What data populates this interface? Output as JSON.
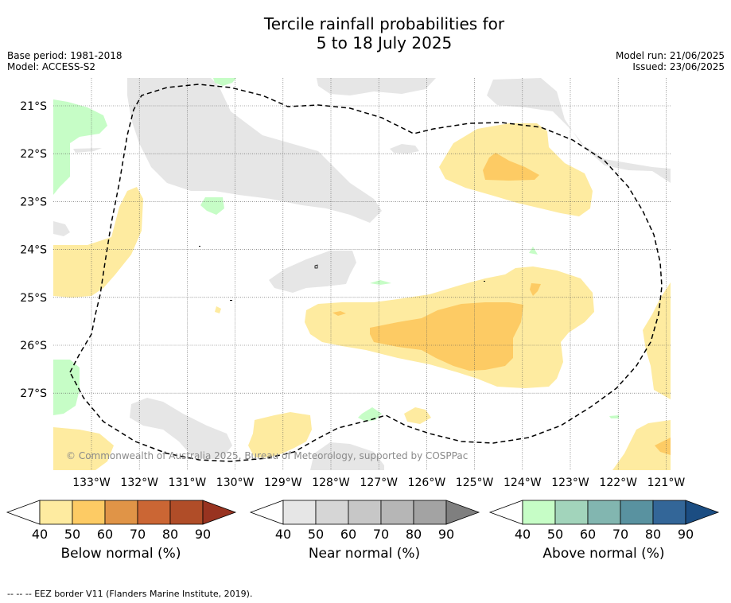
{
  "title_line1": "Tercile rainfall probabilities for",
  "title_line2": "5 to 18 July 2025",
  "meta_left": [
    "Base period: 1981-2018",
    "Model: ACCESS-S2"
  ],
  "meta_right": [
    "Model run: 21/06/2025",
    "Issued: 23/06/2025"
  ],
  "map": {
    "lat_labels": [
      "21°S",
      "22°S",
      "23°S",
      "24°S",
      "25°S",
      "26°S",
      "27°S"
    ],
    "lon_labels": [
      "133°W",
      "132°W",
      "131°W",
      "130°W",
      "129°W",
      "128°W",
      "127°W",
      "126°W",
      "125°W",
      "124°W",
      "123°W",
      "122°W",
      "121°W"
    ],
    "copyright": "© Commonwealth of Australia 2025, Bureau of Meteorology, supported by COSPPac",
    "colors": {
      "below_50": "#feeba0",
      "below_60": "#fdcb64",
      "near_40": "#e6e6e6",
      "above_40": "#c6fdc6",
      "eez_line": "#000000"
    }
  },
  "colorbars": [
    {
      "title": "Below normal (%)",
      "ticks": [
        "40",
        "50",
        "60",
        "70",
        "80",
        "90"
      ],
      "colors": [
        "#ffffff",
        "#feeba0",
        "#fdcb64",
        "#e09447",
        "#cb6634",
        "#b04d28",
        "#983320"
      ]
    },
    {
      "title": "Near normal (%)",
      "ticks": [
        "40",
        "50",
        "60",
        "70",
        "80",
        "90"
      ],
      "colors": [
        "#ffffff",
        "#e6e6e6",
        "#d6d6d6",
        "#c7c7c7",
        "#b6b6b6",
        "#a3a3a3",
        "#7f7f7f"
      ]
    },
    {
      "title": "Above normal (%)",
      "ticks": [
        "40",
        "50",
        "60",
        "70",
        "80",
        "90"
      ],
      "colors": [
        "#ffffff",
        "#c6fdc6",
        "#a2d4bb",
        "#82b6b0",
        "#5992a0",
        "#336698",
        "#1b4d82"
      ]
    }
  ],
  "footer": "--  --  -- EEZ border V11 (Flanders Marine Institute, 2019)."
}
